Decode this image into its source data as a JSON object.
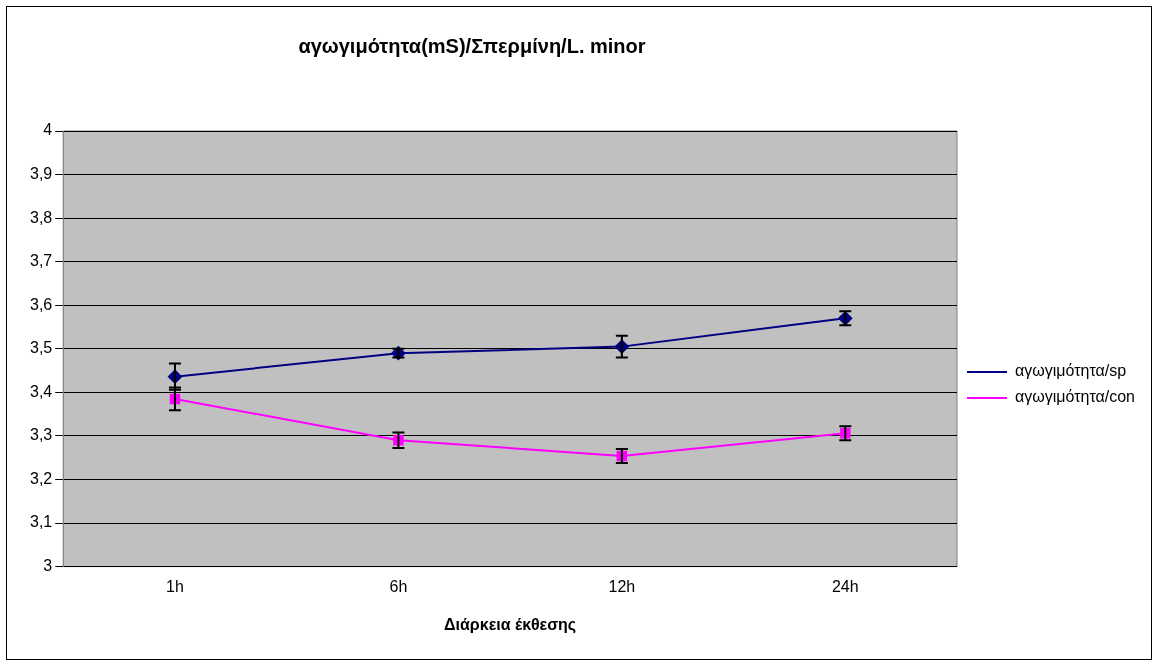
{
  "chart_data": {
    "type": "line",
    "title": "αγωγιμότητα(mS)/Σπερμίνη/L. minor",
    "xlabel": "Διάρκεια έκθεσης",
    "categories": [
      "1h",
      "6h",
      "12h",
      "24h"
    ],
    "series": [
      {
        "name": "αγωγιμότητα/sp",
        "color": "#000080",
        "marker": "diamond",
        "values": [
          3.436,
          3.49,
          3.505,
          3.57
        ],
        "errors": [
          0.03,
          0.01,
          0.025,
          0.016
        ]
      },
      {
        "name": "αγωγιμότητα/con",
        "color": "#ff00ff",
        "marker": "square",
        "values": [
          3.385,
          3.29,
          3.254,
          3.306
        ],
        "errors": [
          0.026,
          0.018,
          0.016,
          0.016
        ]
      }
    ],
    "ylim": [
      3,
      4
    ],
    "yticks": [
      3,
      {
        "value": 3.1,
        "label": "3,1"
      },
      {
        "value": 3.2,
        "label": "3,2"
      },
      {
        "value": 3.3,
        "label": "3,3"
      },
      {
        "value": 3.4,
        "label": "3,4"
      },
      {
        "value": 3.5,
        "label": "3,5"
      },
      {
        "value": 3.6,
        "label": "3,6"
      },
      {
        "value": 3.7,
        "label": "3,7"
      },
      {
        "value": 3.8,
        "label": "3,8"
      },
      {
        "value": 3.9,
        "label": "3,9"
      },
      4
    ],
    "grid": "y",
    "legend": "right"
  }
}
